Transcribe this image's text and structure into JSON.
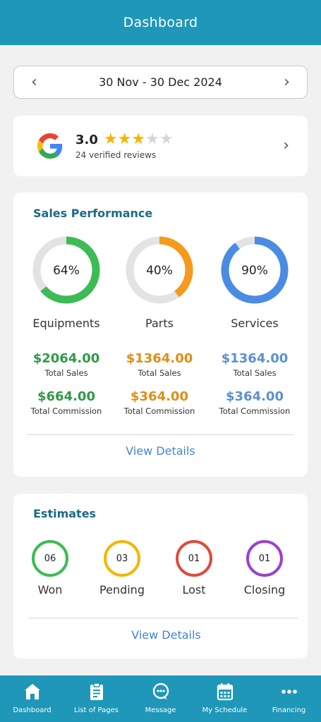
{
  "header": {
    "title": "Dashboard"
  },
  "date_range": {
    "label": "30 Nov - 30 Dec 2024",
    "prev_icon": "chevron-left-icon",
    "next_icon": "chevron-right-icon"
  },
  "reviews": {
    "rating": "3.0",
    "rating_value": 3,
    "max_stars": 5,
    "count_label": "24 verified reviews",
    "logo": "google-logo"
  },
  "sales": {
    "title": "Sales Performance",
    "items": [
      {
        "name": "Equipments",
        "percent_label": "64%",
        "percent": 64,
        "color": "#3dbb55",
        "sales": "$2064.00",
        "sales_label": "Total Sales",
        "commission": "$664.00",
        "commission_label": "Total Commission",
        "money_color": "#2f9a45"
      },
      {
        "name": "Parts",
        "percent_label": "40%",
        "percent": 40,
        "color": "#f59a1b",
        "sales": "$1364.00",
        "sales_label": "Total Sales",
        "commission": "$364.00",
        "commission_label": "Total Commission",
        "money_color": "#e08e14"
      },
      {
        "name": "Services",
        "percent_label": "90%",
        "percent": 90,
        "color": "#4a8be4",
        "sales": "$1364.00",
        "sales_label": "Total Sales",
        "commission": "$364.00",
        "commission_label": "Total Commission",
        "money_color": "#5b8fd6"
      }
    ],
    "view_details": "View Details"
  },
  "estimates": {
    "title": "Estimates",
    "items": [
      {
        "name": "Won",
        "count": "06",
        "color": "#3dbb55"
      },
      {
        "name": "Pending",
        "count": "03",
        "color": "#f2b705"
      },
      {
        "name": "Lost",
        "count": "01",
        "color": "#e04a3a"
      },
      {
        "name": "Closing",
        "count": "01",
        "color": "#9b3fd0"
      }
    ],
    "view_details": "View Details"
  },
  "nav": {
    "items": [
      {
        "label": "Dashboard",
        "icon": "home-icon"
      },
      {
        "label": "List of Pages",
        "icon": "clipboard-icon"
      },
      {
        "label": "Message",
        "icon": "chat-icon"
      },
      {
        "label": "My Schedule",
        "icon": "calendar-icon"
      },
      {
        "label": "Financing",
        "icon": "more-dots-icon"
      }
    ]
  }
}
